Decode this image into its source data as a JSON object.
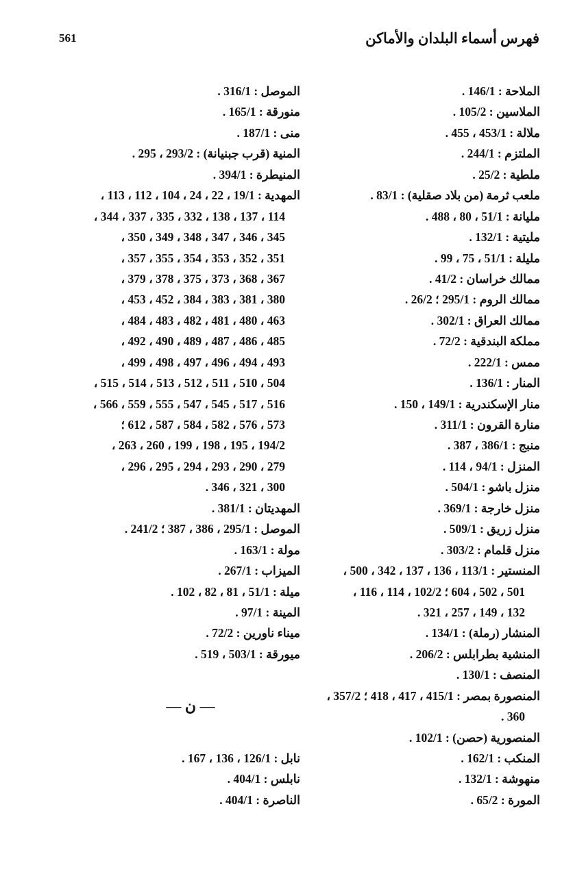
{
  "header": {
    "page_number": "561",
    "title": "فهرس أسماء البلدان والأماكن"
  },
  "right_column": {
    "lines": [
      {
        "text": "الملاحة : 146/1 ."
      },
      {
        "text": "الملاسين : 105/2 ."
      },
      {
        "text": "ملالة : 453/1 ، 455 ."
      },
      {
        "text": "الملتزم : 244/1 ."
      },
      {
        "text": "ملطية : 25/2 ."
      },
      {
        "text": "ملعب ثرمة (من بلاد صقلية) : 83/1 ."
      },
      {
        "text": "مليانة : 51/1 ، 80 ، 488 ."
      },
      {
        "text": "مليتية : 132/1 ."
      },
      {
        "text": "مليلة : 51/1 ، 75 ، 99 ."
      },
      {
        "text": "ممالك خراسان : 41/2 ."
      },
      {
        "text": "ممالك الروم : 295/1 ؛ 26/2 ."
      },
      {
        "text": "ممالك العراق : 302/1 ."
      },
      {
        "text": "مملكة البندقية : 72/2 ."
      },
      {
        "text": "ممس : 222/1 ."
      },
      {
        "text": "المنار : 136/1 ."
      },
      {
        "text": "منار الإسكندرية : 149/1 ، 150 ."
      },
      {
        "text": "منارة القرون : 311/1 ."
      },
      {
        "text": "منبج : 386/1 ، 387 ."
      },
      {
        "text": "المنزل : 94/1 ، 114 ."
      },
      {
        "text": "منزل باشو : 504/1 ."
      },
      {
        "text": "منزل خارجة : 369/1 ."
      },
      {
        "text": "منزل زريق : 509/1 ."
      },
      {
        "text": "منزل قلمام : 303/2 ."
      },
      {
        "text": "المنستير : 113/1 ، 136 ، 137 ، 342 ، 500 ،"
      },
      {
        "text": "501 ، 502 ، 604 ؛ 102/2 ، 114 ، 116 ،",
        "cont": true
      },
      {
        "text": "132 ، 149 ، 257 ، 321 .",
        "cont": true
      },
      {
        "text": "المنشار (رملة) : 134/1 ."
      },
      {
        "text": "المنشية بطرابلس : 206/2 ."
      },
      {
        "text": "المنصف : 130/1 ."
      },
      {
        "text": "المنصورة بمصر : 415/1 ، 417 ، 418 ؛ 357/2 ،"
      },
      {
        "text": "360 .",
        "cont": true
      },
      {
        "text": "المنصورية (حصن) : 102/1 ."
      },
      {
        "text": "المنكب : 162/1 ."
      },
      {
        "text": "منهوشة : 132/1 ."
      },
      {
        "text": "المورة : 65/2 ."
      }
    ]
  },
  "left_column": {
    "lines": [
      {
        "text": "الموصل : 316/1 ."
      },
      {
        "text": "منورقة : 165/1 ."
      },
      {
        "text": "منى : 187/1 ."
      },
      {
        "text": "المنية (قرب جبنيانة) : 293/2 ، 295 ."
      },
      {
        "text": "المنيطرة : 394/1 ."
      },
      {
        "text": "المهدية : 19/1 ، 22 ، 24 ، 104 ، 112 ، 113 ،"
      },
      {
        "text": "114 ، 137 ، 138 ، 332 ، 335 ، 337 ، 344 ،",
        "cont": true
      },
      {
        "text": "345 ، 346 ، 347 ، 348 ، 349 ، 350 ،",
        "cont": true
      },
      {
        "text": "351 ، 352 ، 353 ، 354 ، 355 ، 357 ،",
        "cont": true
      },
      {
        "text": "367 ، 368 ، 373 ، 375 ، 378 ، 379 ،",
        "cont": true
      },
      {
        "text": "380 ، 381 ، 383 ، 384 ، 452 ، 453 ،",
        "cont": true
      },
      {
        "text": "463 ، 480 ، 481 ، 482 ، 483 ، 484 ،",
        "cont": true
      },
      {
        "text": "485 ، 486 ، 487 ، 489 ، 490 ، 492 ،",
        "cont": true
      },
      {
        "text": "493 ، 494 ، 496 ، 497 ، 498 ، 499 ،",
        "cont": true
      },
      {
        "text": "504 ، 510 ، 511 ، 512 ، 513 ، 514 ، 515 ،",
        "cont": true
      },
      {
        "text": "516 ، 517 ، 545 ، 547 ، 555 ، 559 ، 566 ،",
        "cont": true
      },
      {
        "text": "573 ، 576 ، 582 ، 584 ، 587 ، 612 ؛",
        "cont": true
      },
      {
        "text": "194/2 ، 195 ، 198 ، 199 ، 260 ، 263 ،",
        "cont": true
      },
      {
        "text": "279 ، 290 ، 293 ، 294 ، 295 ، 296 ،",
        "cont": true
      },
      {
        "text": "300 ، 321 ، 346 .",
        "cont": true
      },
      {
        "text": "المهديتان : 381/1 ."
      },
      {
        "text": "الموصل : 295/1 ، 386 ، 387 ؛ 241/2 ."
      },
      {
        "text": "مولة : 163/1 ."
      },
      {
        "text": "الميزاب : 267/1 ."
      },
      {
        "text": "ميلة : 51/1 ، 81 ، 82 ، 102 ."
      },
      {
        "text": "المينة : 97/1 ."
      },
      {
        "text": "ميناء ناورين : 72/2 ."
      },
      {
        "text": "ميورقة : 503/1 ، 519 ."
      },
      {
        "text": "",
        "blank": true
      },
      {
        "text": "— ن —",
        "heading": true
      },
      {
        "text": "نابل : 126/1 ، 136 ، 167 ."
      },
      {
        "text": "نابلس : 404/1 ."
      },
      {
        "text": "الناصرة : 404/1 ."
      }
    ]
  }
}
